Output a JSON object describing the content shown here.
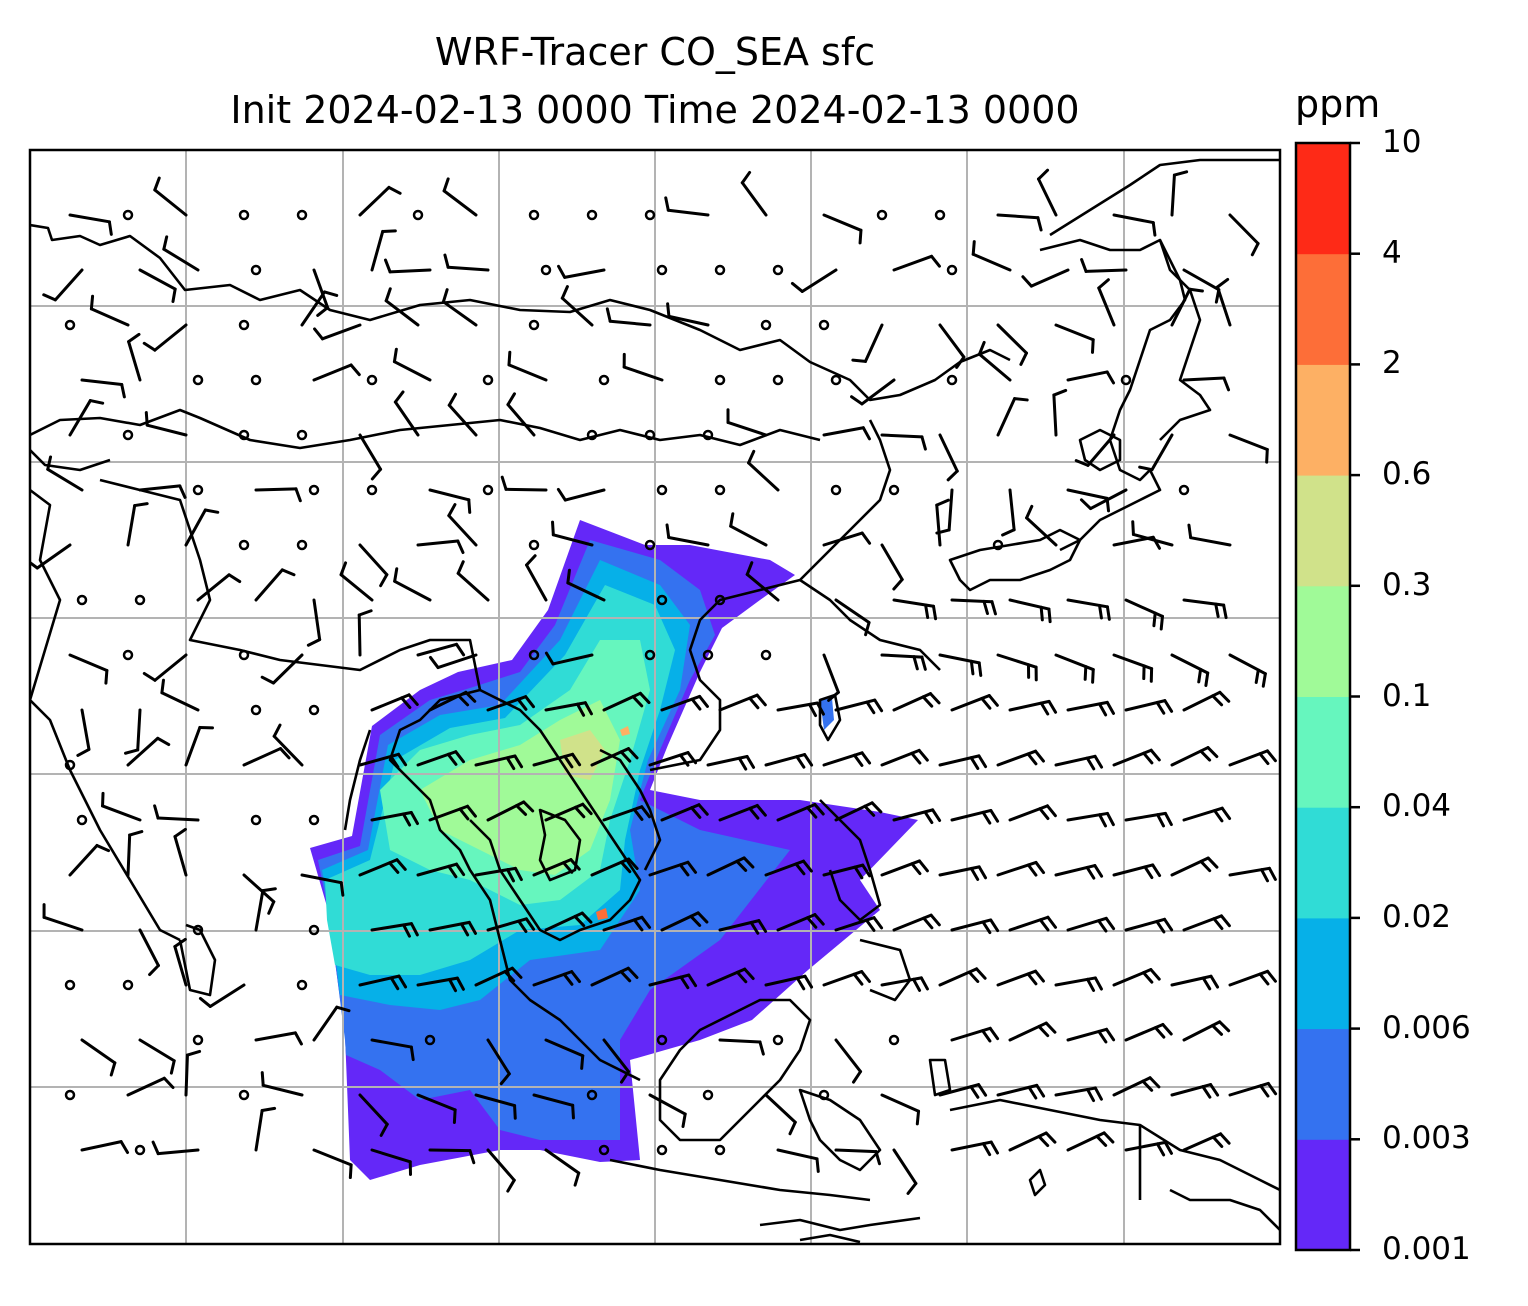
{
  "title": {
    "line1": "WRF-Tracer CO_SEA sfc",
    "line2": "Init 2024-02-13 0000 Time 2024-02-13 0000"
  },
  "colorbar": {
    "units": "ppm",
    "levels": [
      "0.001",
      "0.003",
      "0.006",
      "0.02",
      "0.04",
      "0.1",
      "0.3",
      "0.6",
      "2",
      "4",
      "10"
    ],
    "colors": [
      "#6428f8",
      "#3472f0",
      "#06b0e8",
      "#30dcd6",
      "#66f6be",
      "#a0fa98",
      "#d0e28a",
      "#fdb064",
      "#fd6e38",
      "#fe2a17"
    ]
  },
  "map": {
    "background": "#ffffff",
    "coastline_color": "#000000",
    "gridline_color": "#b3b3b3",
    "wind_barbs": "black wind barbs and calm-wind circles"
  }
}
